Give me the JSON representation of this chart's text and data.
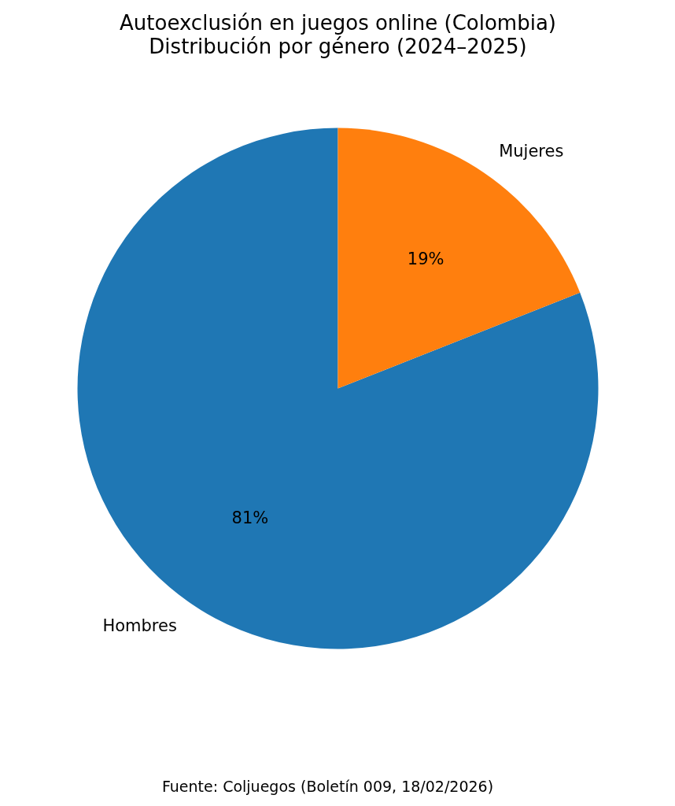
{
  "chart_data": {
    "type": "pie",
    "title": "Autoexclusión en juegos online (Colombia)",
    "subtitle": "Distribución por género (2024–2025)",
    "categories": [
      "Hombres",
      "Mujeres"
    ],
    "values": [
      81,
      19
    ],
    "colors": [
      "#1f77b4",
      "#ff7f0e"
    ],
    "value_labels": [
      "81%",
      "19%"
    ],
    "annotations": [
      "Fuente: Coljuegos (Boletín 009, 18/02/2026)"
    ]
  }
}
